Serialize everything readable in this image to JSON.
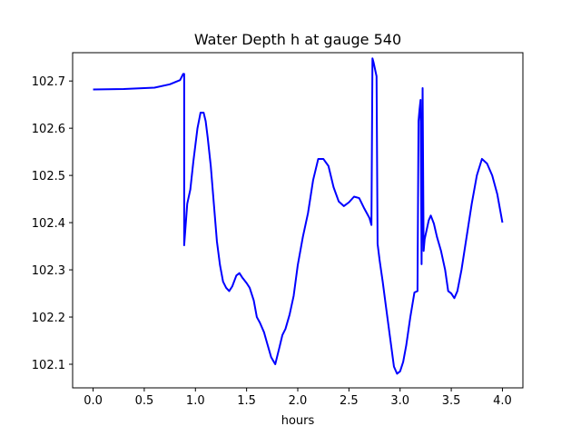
{
  "chart_data": {
    "type": "line",
    "title": "Water Depth h at gauge 540",
    "xlabel": "hours",
    "ylabel": "",
    "xlim": [
      -0.2,
      4.2
    ],
    "ylim": [
      102.05,
      102.76
    ],
    "xticks": [
      0.0,
      0.5,
      1.0,
      1.5,
      2.0,
      2.5,
      3.0,
      3.5,
      4.0
    ],
    "xtick_labels": [
      "0.0",
      "0.5",
      "1.0",
      "1.5",
      "2.0",
      "2.5",
      "3.0",
      "3.5",
      "4.0"
    ],
    "yticks": [
      102.1,
      102.2,
      102.3,
      102.4,
      102.5,
      102.6,
      102.7
    ],
    "ytick_labels": [
      "102.1",
      "102.2",
      "102.3",
      "102.4",
      "102.5",
      "102.6",
      "102.7"
    ],
    "grid": false,
    "line_color": "#0000ff",
    "series": [
      {
        "name": "",
        "x": [
          0.0,
          0.3,
          0.6,
          0.75,
          0.85,
          0.88,
          0.89,
          0.89,
          0.92,
          0.95,
          0.98,
          1.02,
          1.05,
          1.08,
          1.1,
          1.12,
          1.15,
          1.18,
          1.21,
          1.24,
          1.27,
          1.3,
          1.33,
          1.36,
          1.4,
          1.43,
          1.46,
          1.5,
          1.53,
          1.57,
          1.6,
          1.63,
          1.67,
          1.7,
          1.74,
          1.78,
          1.82,
          1.85,
          1.88,
          1.92,
          1.96,
          2.0,
          2.05,
          2.1,
          2.15,
          2.2,
          2.25,
          2.3,
          2.35,
          2.4,
          2.45,
          2.5,
          2.55,
          2.6,
          2.65,
          2.7,
          2.72,
          2.73,
          2.74,
          2.77,
          2.78,
          2.8,
          2.83,
          2.86,
          2.9,
          2.94,
          2.97,
          3.0,
          3.03,
          3.06,
          3.1,
          3.14,
          3.17,
          3.18,
          3.19,
          3.2,
          3.21,
          3.22,
          3.23,
          3.24,
          3.25,
          3.28,
          3.3,
          3.33,
          3.36,
          3.4,
          3.44,
          3.47,
          3.5,
          3.53,
          3.56,
          3.6,
          3.65,
          3.7,
          3.75,
          3.8,
          3.85,
          3.9,
          3.95,
          4.0
        ],
        "values": [
          102.682,
          102.683,
          102.686,
          102.693,
          102.702,
          102.715,
          102.715,
          102.352,
          102.44,
          102.47,
          102.53,
          102.6,
          102.633,
          102.633,
          102.615,
          102.58,
          102.52,
          102.44,
          102.36,
          102.31,
          102.275,
          102.262,
          102.255,
          102.265,
          102.288,
          102.293,
          102.283,
          102.272,
          102.262,
          102.235,
          102.2,
          102.188,
          102.168,
          102.145,
          102.115,
          102.1,
          102.135,
          102.162,
          102.175,
          102.205,
          102.245,
          102.31,
          102.37,
          102.42,
          102.49,
          102.535,
          102.535,
          102.52,
          102.475,
          102.445,
          102.435,
          102.443,
          102.455,
          102.452,
          102.43,
          102.41,
          102.395,
          102.748,
          102.74,
          102.71,
          102.355,
          102.32,
          102.275,
          102.225,
          102.16,
          102.095,
          102.08,
          102.085,
          102.105,
          102.14,
          102.2,
          102.252,
          102.255,
          102.615,
          102.64,
          102.66,
          102.312,
          102.685,
          102.34,
          102.365,
          102.375,
          102.405,
          102.415,
          102.398,
          102.37,
          102.34,
          102.3,
          102.255,
          102.25,
          102.24,
          102.255,
          102.3,
          102.37,
          102.44,
          102.5,
          102.535,
          102.525,
          102.5,
          102.46,
          102.4
        ]
      }
    ]
  }
}
